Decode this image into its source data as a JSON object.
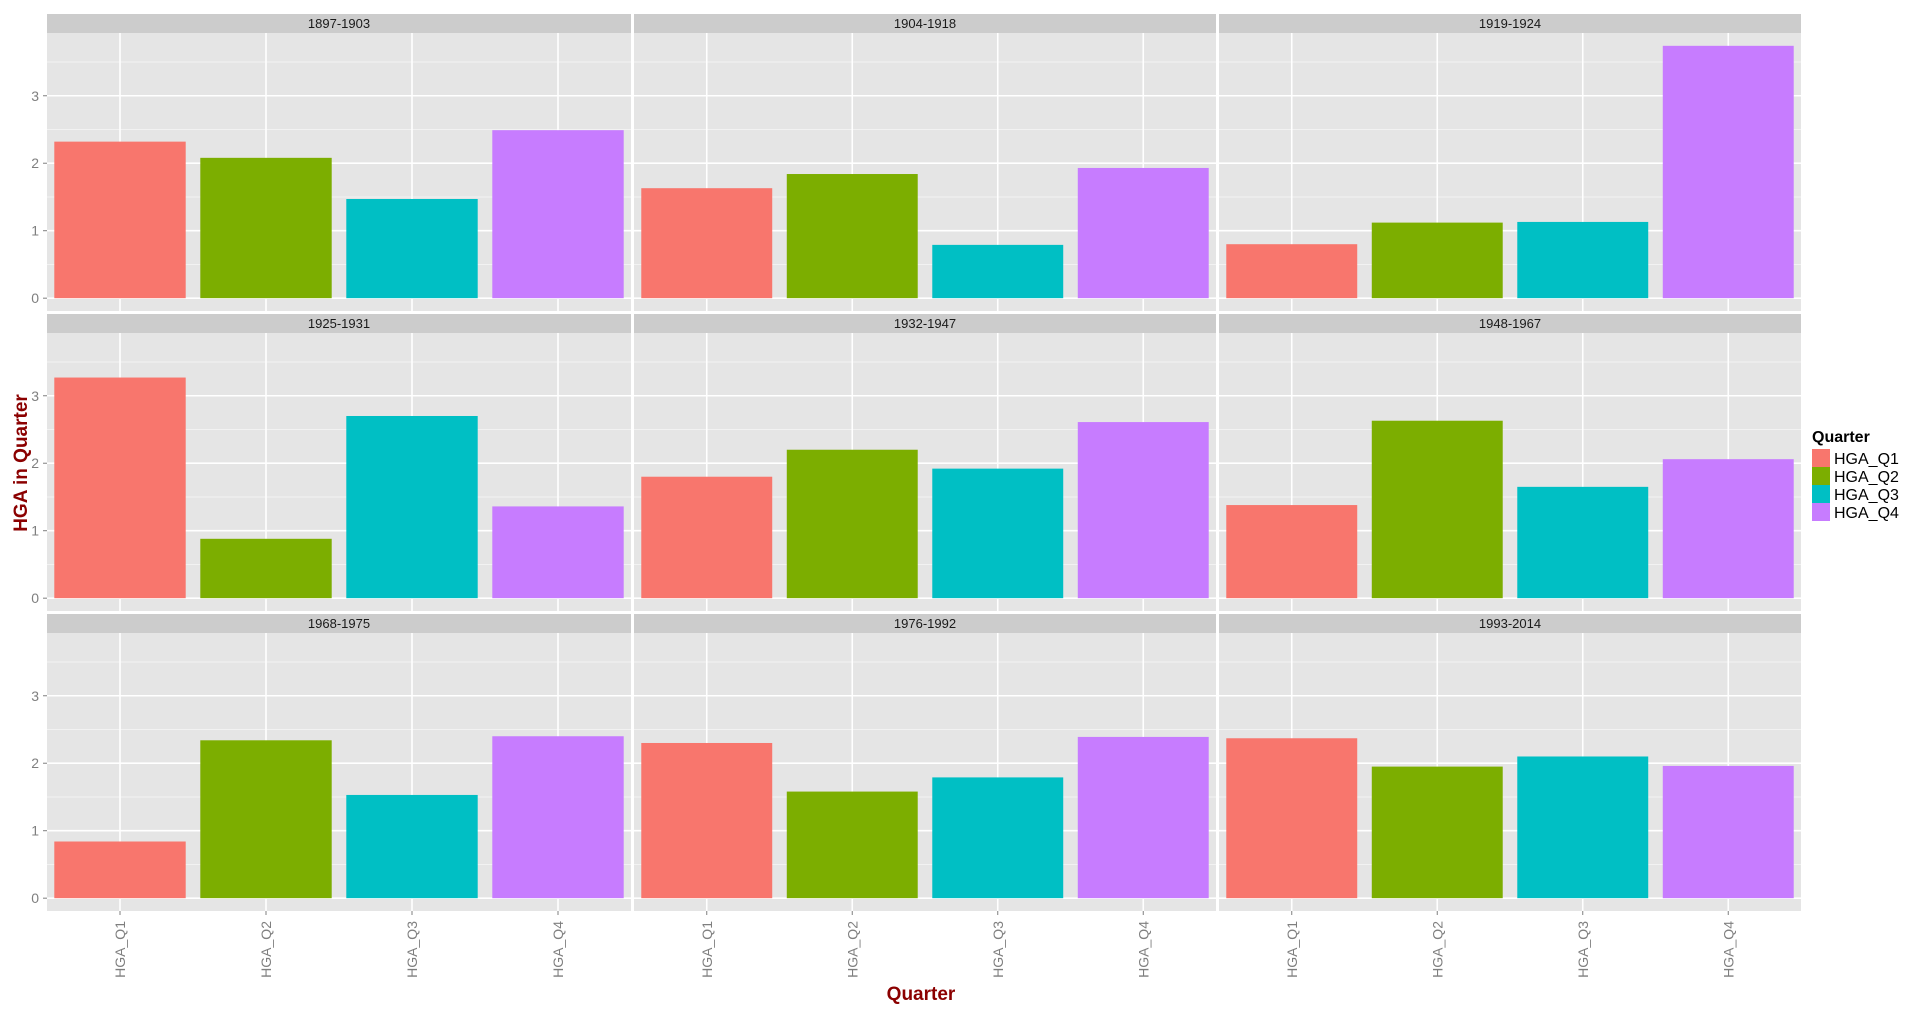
{
  "chart_data": {
    "type": "bar",
    "facets": [
      {
        "label": "1897-1903",
        "values": [
          2.32,
          2.08,
          1.47,
          2.49
        ]
      },
      {
        "label": "1904-1918",
        "values": [
          1.63,
          1.84,
          0.79,
          1.93
        ]
      },
      {
        "label": "1919-1924",
        "values": [
          0.8,
          1.12,
          1.13,
          3.74
        ]
      },
      {
        "label": "1925-1931",
        "values": [
          3.27,
          0.88,
          2.7,
          1.36
        ]
      },
      {
        "label": "1932-1947",
        "values": [
          1.8,
          2.2,
          1.92,
          2.61
        ]
      },
      {
        "label": "1948-1967",
        "values": [
          1.38,
          2.63,
          1.65,
          2.06
        ]
      },
      {
        "label": "1968-1975",
        "values": [
          0.84,
          2.34,
          1.53,
          2.4
        ]
      },
      {
        "label": "1976-1992",
        "values": [
          2.3,
          1.58,
          1.79,
          2.39
        ]
      },
      {
        "label": "1993-2014",
        "values": [
          2.37,
          1.95,
          2.1,
          1.96
        ]
      }
    ],
    "categories": [
      "HGA_Q1",
      "HGA_Q2",
      "HGA_Q3",
      "HGA_Q4"
    ],
    "colors": [
      "#F8766D",
      "#7CAE00",
      "#00BFC4",
      "#C77CFF"
    ],
    "xlabel": "Quarter",
    "ylabel": "HGA in Quarter",
    "yticks": [
      0,
      1,
      2,
      3
    ],
    "ylim": [
      -0.19,
      3.93
    ],
    "grid": true,
    "legend": {
      "title": "Quarter",
      "position": "right",
      "entries": [
        "HGA_Q1",
        "HGA_Q2",
        "HGA_Q3",
        "HGA_Q4"
      ]
    }
  }
}
